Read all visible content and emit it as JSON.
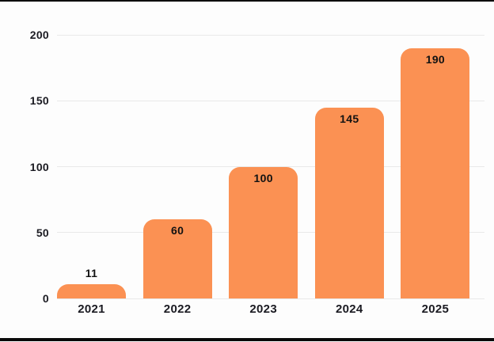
{
  "chart_data": {
    "type": "bar",
    "title": "",
    "xlabel": "",
    "ylabel": "",
    "categories": [
      "2021",
      "2022",
      "2023",
      "2024",
      "2025"
    ],
    "values": [
      11,
      60,
      100,
      145,
      190
    ],
    "value_labels": [
      "11",
      "60",
      "100",
      "145",
      "190"
    ],
    "yticks": [
      0,
      50,
      100,
      150,
      200
    ],
    "ytick_labels": [
      "0",
      "50",
      "100",
      "150",
      "200"
    ],
    "ylim": [
      0,
      200
    ],
    "grid": true,
    "legend": false,
    "bar_color": "#fb9153",
    "gridline_color": "#e9e9e9",
    "text_color": "#1b1b22",
    "value_label_color": "#121212",
    "background_color": "#fdfdfd",
    "frame_border_color": "#0a0a0a",
    "value_label_placement": "inside bar top; above bar when bar is too short"
  }
}
